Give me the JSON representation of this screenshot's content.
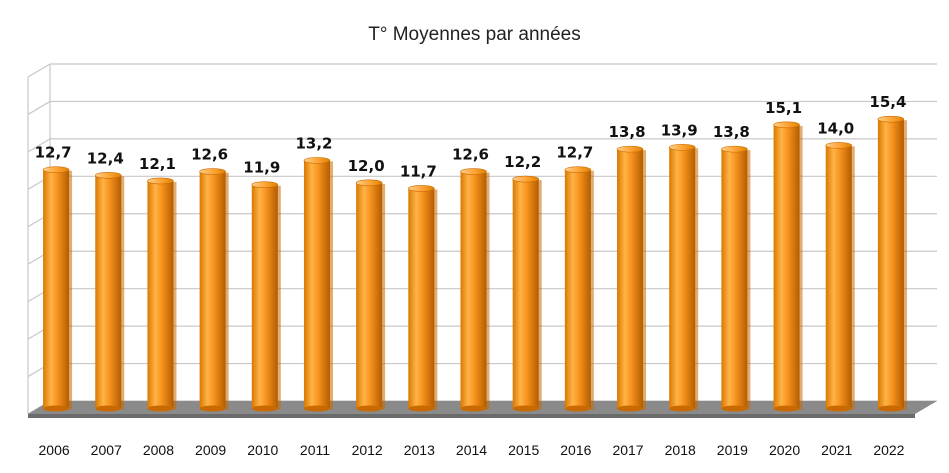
{
  "chart_data": {
    "type": "bar",
    "title": "T° Moyennes par années",
    "xlabel": "",
    "ylabel": "",
    "categories": [
      "2006",
      "2007",
      "2008",
      "2009",
      "2010",
      "2011",
      "2012",
      "2013",
      "2014",
      "2015",
      "2016",
      "2017",
      "2018",
      "2019",
      "2020",
      "2021",
      "2022"
    ],
    "values": [
      12.7,
      12.4,
      12.1,
      12.6,
      11.9,
      13.2,
      12.0,
      11.7,
      12.6,
      12.2,
      12.7,
      13.8,
      13.9,
      13.8,
      15.1,
      14.0,
      15.4
    ],
    "data_labels": [
      "12,7",
      "12,4",
      "12,1",
      "12,6",
      "11,9",
      "13,2",
      "12,0",
      "11,7",
      "12,6",
      "12,2",
      "12,7",
      "13,8",
      "13,9",
      "13,8",
      "15,1",
      "14,0",
      "15,4"
    ],
    "ylim": [
      0,
      18
    ],
    "grid": true,
    "legend": "none",
    "colors": {
      "bar": "#f7931e",
      "bar_light": "#ffc06a",
      "bar_dark": "#c96a00",
      "floor": "#8a8a8a",
      "grid": "#c8c8c8"
    }
  }
}
